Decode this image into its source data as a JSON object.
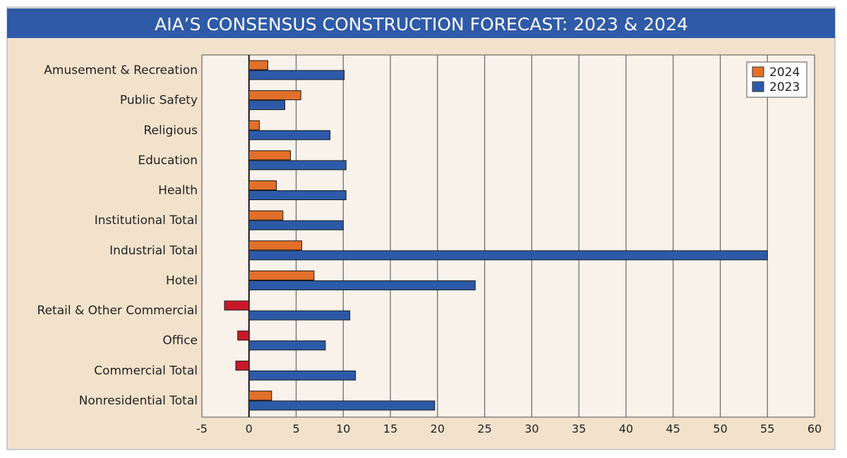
{
  "chart_data": {
    "type": "bar",
    "orientation": "horizontal",
    "title": "AIA’S CONSENSUS CONSTRUCTION FORECAST: 2023 & 2024",
    "categories": [
      "Amusement & Recreation",
      "Public Safety",
      "Religious",
      "Education",
      "Health",
      "Institutional Total",
      "Industrial Total",
      "Hotel",
      "Retail & Other Commercial",
      "Office",
      "Commercial Total",
      "Nonresidential Total"
    ],
    "series": [
      {
        "name": "2024",
        "color": "#e2702a",
        "negative_color": "#c8192a",
        "values": [
          2.0,
          5.5,
          1.1,
          4.4,
          2.9,
          3.6,
          5.6,
          6.9,
          -2.6,
          -1.2,
          -1.4,
          2.4
        ]
      },
      {
        "name": "2023",
        "color": "#2d5aa8",
        "values": [
          10.1,
          3.8,
          8.6,
          10.3,
          10.3,
          10.0,
          55.0,
          24.0,
          10.7,
          8.1,
          11.3,
          19.7
        ]
      }
    ],
    "xlim": [
      -5,
      60
    ],
    "xticks": [
      -5,
      0,
      5,
      10,
      15,
      20,
      25,
      30,
      35,
      40,
      45,
      50,
      55,
      60
    ],
    "grid": "vertical",
    "legend_position": "top-right",
    "colors": {
      "title_bar": "#2f5aa8",
      "frame_bg": "#f2e2cc",
      "plot_bg": "#f8f2eb"
    }
  }
}
